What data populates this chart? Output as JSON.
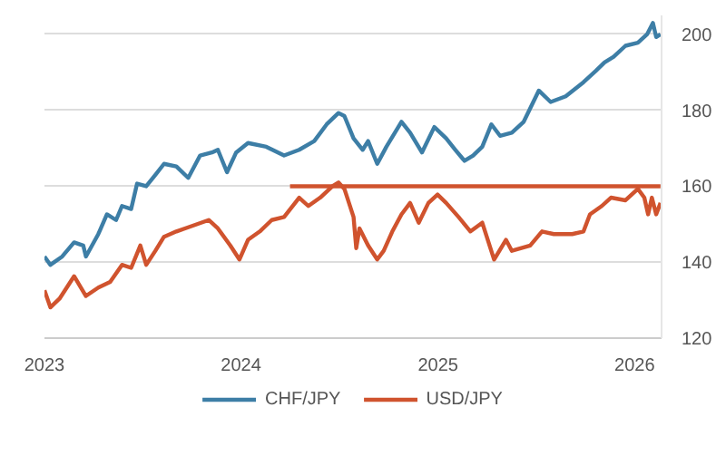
{
  "chart_data": {
    "type": "line",
    "xlim": [
      "2023-01-01",
      "2026-02-20"
    ],
    "ylim": [
      120,
      205
    ],
    "xticks": [
      {
        "value": "2023-01-01",
        "label": "2023"
      },
      {
        "value": "2024-01-01",
        "label": "2024"
      },
      {
        "value": "2025-01-01",
        "label": "2025"
      },
      {
        "value": "2026-01-01",
        "label": "2026"
      }
    ],
    "yticks": [
      120,
      140,
      160,
      180,
      200
    ],
    "grid": "y",
    "legend": "bottom",
    "line_style": "solid",
    "marker": "none",
    "series": [
      {
        "name": "CHF/JPY",
        "color": "#3d7ea6",
        "x": [
          "2023-01-01",
          "2023-01-12",
          "2023-02-03",
          "2023-02-25",
          "2023-03-14",
          "2023-03-19",
          "2023-04-11",
          "2023-04-27",
          "2023-05-14",
          "2023-05-25",
          "2023-06-11",
          "2023-06-22",
          "2023-07-09",
          "2023-07-26",
          "2023-08-11",
          "2023-09-03",
          "2023-09-25",
          "2023-10-17",
          "2023-11-08",
          "2023-11-19",
          "2023-12-06",
          "2023-12-23",
          "2024-01-14",
          "2024-02-17",
          "2024-03-21",
          "2024-04-18",
          "2024-05-16",
          "2024-06-08",
          "2024-06-30",
          "2024-07-11",
          "2024-07-28",
          "2024-08-14",
          "2024-08-24",
          "2024-09-10",
          "2024-09-27",
          "2024-10-25",
          "2024-11-10",
          "2024-12-02",
          "2024-12-25",
          "2025-01-16",
          "2025-02-02",
          "2025-02-19",
          "2025-03-07",
          "2025-03-24",
          "2025-04-10",
          "2025-04-26",
          "2025-05-18",
          "2025-06-09",
          "2025-07-07",
          "2025-07-29",
          "2025-08-26",
          "2025-09-28",
          "2025-10-21",
          "2025-11-06",
          "2025-11-23",
          "2025-12-15",
          "2026-01-07",
          "2026-01-24",
          "2026-02-04",
          "2026-02-10",
          "2026-02-18"
        ],
        "values": [
          141.5,
          139.3,
          141.5,
          145.2,
          144.4,
          141.5,
          147.4,
          152.6,
          151.1,
          154.8,
          154,
          160.7,
          160,
          163,
          165.9,
          165.2,
          162.2,
          168.1,
          168.9,
          169.6,
          163.7,
          168.9,
          171.4,
          170.4,
          168.1,
          169.6,
          171.9,
          176.3,
          179.3,
          178.5,
          172.6,
          169.6,
          171.9,
          165.9,
          170.4,
          177,
          174.1,
          168.9,
          175.6,
          172.6,
          169.6,
          166.7,
          168.1,
          170.4,
          176.3,
          173.3,
          174.1,
          177,
          185.2,
          182.2,
          183.7,
          187.4,
          190.4,
          192.6,
          194.1,
          197,
          197.8,
          200,
          203,
          199.3,
          200
        ]
      },
      {
        "name": "USD/JPY",
        "color": "#d0532e",
        "x": [
          "2023-01-01",
          "2023-01-12",
          "2023-01-29",
          "2023-02-25",
          "2023-03-19",
          "2023-04-11",
          "2023-05-03",
          "2023-05-25",
          "2023-06-11",
          "2023-06-28",
          "2023-07-09",
          "2023-07-26",
          "2023-08-11",
          "2023-09-03",
          "2023-09-25",
          "2023-11-02",
          "2023-11-19",
          "2023-12-12",
          "2023-12-29",
          "2024-01-14",
          "2024-02-05",
          "2024-02-27",
          "2024-03-21",
          "2024-04-18",
          "2024-05-05",
          "2024-05-27",
          "2024-06-19",
          "2024-06-30",
          "2024-07-11",
          "2024-07-28",
          "2024-08-02",
          "2024-08-08",
          "2024-08-24",
          "2024-09-10",
          "2024-09-22",
          "2024-10-08",
          "2024-10-25",
          "2024-11-10",
          "2024-11-26",
          "2024-12-14",
          "2024-12-31",
          "2025-01-16",
          "2025-02-08",
          "2025-03-02",
          "2025-03-24",
          "2025-04-15",
          "2025-05-07",
          "2025-05-18",
          "2025-06-21",
          "2025-07-13",
          "2025-08-04",
          "2025-09-07",
          "2025-09-28",
          "2025-10-10",
          "2025-11-01",
          "2025-11-18",
          "2025-12-15",
          "2026-01-07",
          "2026-01-19",
          "2026-01-26",
          "2026-02-02",
          "2026-02-10",
          "2026-02-18"
        ],
        "values": [
          132.6,
          128.1,
          130.4,
          136.3,
          131.1,
          133.3,
          134.8,
          139.3,
          138.5,
          144.4,
          139.3,
          143,
          146.7,
          148.1,
          149.2,
          151.1,
          148.9,
          144.4,
          140.7,
          145.9,
          148.1,
          151.1,
          151.9,
          157,
          154.8,
          157,
          160,
          161,
          159.3,
          151.9,
          143.7,
          148.9,
          144.4,
          140.7,
          143,
          148.1,
          152.6,
          155.6,
          150.4,
          155.6,
          157.8,
          155.6,
          151.9,
          148.1,
          150.4,
          140.7,
          145.9,
          143,
          144.4,
          148.1,
          147.4,
          147.4,
          148.1,
          152.6,
          154.8,
          157,
          156.3,
          159.3,
          157,
          152.6,
          157,
          152.6,
          155.6
        ]
      },
      {
        "color": "#d0532e",
        "x": [
          "2024-04-01",
          "2026-02-18"
        ],
        "values": [
          160,
          160
        ]
      }
    ]
  }
}
